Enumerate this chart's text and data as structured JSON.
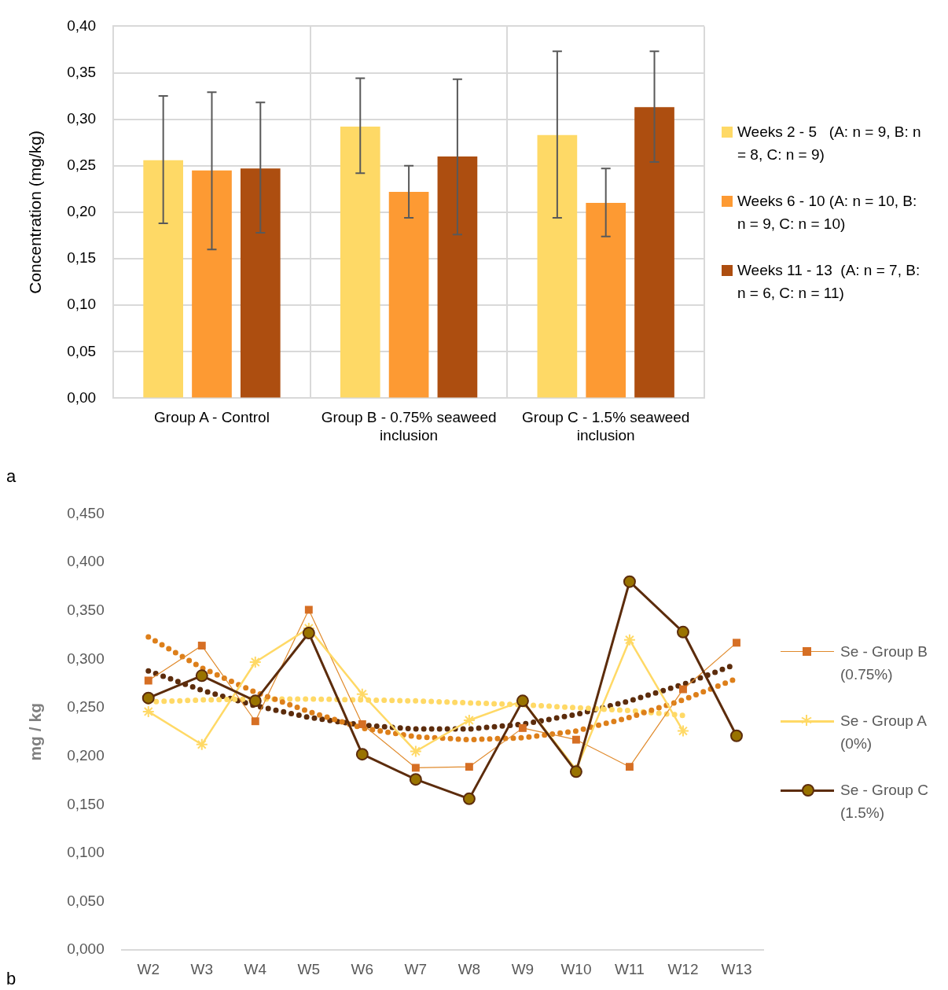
{
  "chart_data": [
    {
      "type": "bar",
      "ylabel": "Concentration (mg/kg)",
      "categories": [
        "Group A - Control",
        "Group B - 0.75% seaweed inclusion",
        "Group C - 1.5% seaweed inclusion"
      ],
      "series": [
        {
          "name": "Weeks 2 - 5   (A: n = 9, B: n = 8, C: n = 9)",
          "color": "#fed966",
          "values": [
            0.256,
            0.292,
            0.283
          ],
          "errors": [
            [
              0.188,
              0.325
            ],
            [
              0.242,
              0.344
            ],
            [
              0.194,
              0.373
            ]
          ]
        },
        {
          "name": "Weeks 6 - 10 (A: n = 10, B: n = 9, C: n = 10)",
          "color": "#fd9a33",
          "values": [
            0.245,
            0.222,
            0.21
          ],
          "errors": [
            [
              0.16,
              0.329
            ],
            [
              0.194,
              0.25
            ],
            [
              0.174,
              0.247
            ]
          ]
        },
        {
          "name": "Weeks 11 - 13  (A: n = 7, B: n = 6, C: n = 11)",
          "color": "#ad4e10",
          "values": [
            0.247,
            0.26,
            0.313
          ],
          "errors": [
            [
              0.178,
              0.318
            ],
            [
              0.176,
              0.343
            ],
            [
              0.254,
              0.373
            ]
          ]
        }
      ],
      "ylim": [
        0,
        0.4
      ],
      "yticks": [
        {
          "value": 0,
          "label": "0,00"
        },
        {
          "value": 0.05,
          "label": "0,05"
        },
        {
          "value": 0.1,
          "label": "0,10"
        },
        {
          "value": 0.15,
          "label": "0,15"
        },
        {
          "value": 0.2,
          "label": "0,20"
        },
        {
          "value": 0.25,
          "label": "0,25"
        },
        {
          "value": 0.3,
          "label": "0,30"
        },
        {
          "value": 0.35,
          "label": "0,35"
        },
        {
          "value": 0.4,
          "label": "0,40"
        }
      ],
      "grid": true,
      "legend": "right",
      "annotations": [
        "a"
      ]
    },
    {
      "type": "line",
      "ylabel": "mg / kg",
      "categories": [
        "W2",
        "W3",
        "W4",
        "W5",
        "W6",
        "W7",
        "W8",
        "W9",
        "W10",
        "W11",
        "W12",
        "W13"
      ],
      "series": [
        {
          "name": "Se - Group B (0.75%)",
          "color": "#e08a2c",
          "marker": "square",
          "values": [
            0.278,
            0.314,
            0.236,
            0.351,
            0.233,
            0.188,
            0.189,
            0.229,
            0.217,
            0.189,
            0.269,
            0.317
          ]
        },
        {
          "name": "Se - Group A (0%)",
          "color": "#ffd966",
          "marker": "cross",
          "values": [
            0.246,
            0.212,
            0.297,
            0.332,
            0.264,
            0.205,
            0.237,
            0.257,
            0.186,
            0.32,
            0.226,
            null
          ]
        },
        {
          "name": "Se - Group C (1.5%)",
          "color": "#5c2c0c",
          "marker": "circle",
          "values": [
            0.26,
            0.283,
            0.257,
            0.327,
            0.202,
            0.176,
            0.156,
            0.257,
            0.184,
            0.38,
            0.328,
            0.221
          ]
        },
        {
          "type": "line",
          "color": "#dd7f1a",
          "marker": "none",
          "line_style": "dotted",
          "x": [
            "W2",
            "W3",
            "W4",
            "W5",
            "W6",
            "W7",
            "W8",
            "W9",
            "W10",
            "W11",
            "W12",
            "W13"
          ],
          "values": [
            0.323,
            0.291,
            0.266,
            0.246,
            0.229,
            0.22,
            0.217,
            0.219,
            0.226,
            0.24,
            0.258,
            0.28
          ]
        },
        {
          "type": "line",
          "color": "#ffd966",
          "marker": "none",
          "line_style": "dotted",
          "x": [
            "W2",
            "W3",
            "W4",
            "W5",
            "W6",
            "W7",
            "W8",
            "W9",
            "W10",
            "W11",
            "W12"
          ],
          "values": [
            0.256,
            0.258,
            0.259,
            0.259,
            0.258,
            0.257,
            0.255,
            0.253,
            0.25,
            0.247,
            0.242
          ]
        },
        {
          "type": "line",
          "color": "#5c2c0c",
          "marker": "none",
          "line_style": "dotted",
          "x": [
            "W2",
            "W3",
            "W4",
            "W5",
            "W6",
            "W7",
            "W8",
            "W9",
            "W10",
            "W11",
            "W12",
            "W13"
          ],
          "values": [
            0.288,
            0.268,
            0.252,
            0.24,
            0.232,
            0.228,
            0.228,
            0.233,
            0.243,
            0.257,
            0.274,
            0.295
          ]
        }
      ],
      "ylim": [
        0,
        0.45
      ],
      "yticks": [
        {
          "value": 0,
          "label": "0,000"
        },
        {
          "value": 0.05,
          "label": "0,050"
        },
        {
          "value": 0.1,
          "label": "0,100"
        },
        {
          "value": 0.15,
          "label": "0,150"
        },
        {
          "value": 0.2,
          "label": "0,200"
        },
        {
          "value": 0.25,
          "label": "0,250"
        },
        {
          "value": 0.3,
          "label": "0,300"
        },
        {
          "value": 0.35,
          "label": "0,350"
        },
        {
          "value": 0.4,
          "label": "0,400"
        },
        {
          "value": 0.45,
          "label": "0,450"
        }
      ],
      "grid": false,
      "legend": "right",
      "annotations": [
        "b"
      ]
    }
  ]
}
